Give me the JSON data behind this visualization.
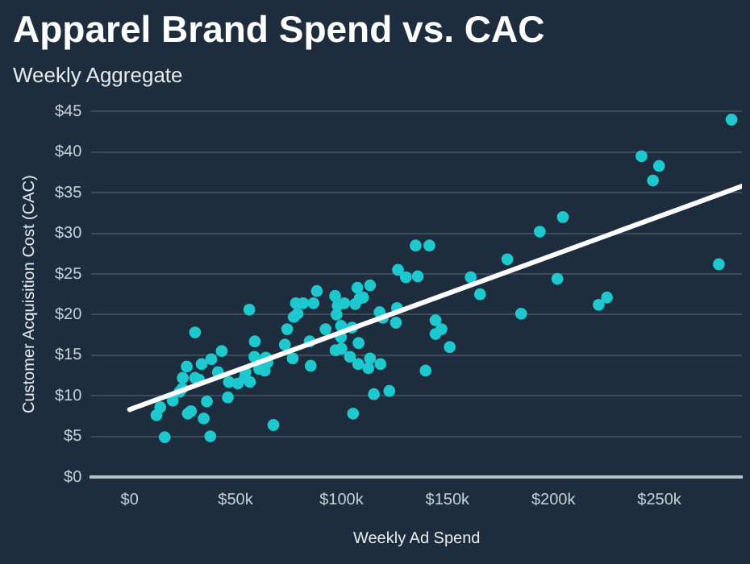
{
  "chart_data": {
    "type": "scatter",
    "title": "Apparel Brand Spend vs. CAC",
    "subtitle": "Weekly Aggregate",
    "xlabel": "Weekly Ad Spend",
    "ylabel": "Customer Acquisition Cost (CAC)",
    "xlim": [
      -18000,
      289000
    ],
    "xticks": [
      {
        "value": 0,
        "label": "$0"
      },
      {
        "value": 50000,
        "label": "$50k"
      },
      {
        "value": 100000,
        "label": "$100k"
      },
      {
        "value": 150000,
        "label": "$150k"
      },
      {
        "value": 200000,
        "label": "$200k"
      },
      {
        "value": 250000,
        "label": "$250k"
      }
    ],
    "ylim": [
      0,
      45
    ],
    "yticks": [
      {
        "value": 0,
        "label": "$0"
      },
      {
        "value": 5,
        "label": "$5"
      },
      {
        "value": 10,
        "label": "$10"
      },
      {
        "value": 15,
        "label": "$15"
      },
      {
        "value": 20,
        "label": "$20"
      },
      {
        "value": 25,
        "label": "$25"
      },
      {
        "value": 30,
        "label": "$30"
      },
      {
        "value": 35,
        "label": "$35"
      },
      {
        "value": 40,
        "label": "$40"
      },
      {
        "value": 45,
        "label": "$45"
      }
    ],
    "grid": "y",
    "legend": false,
    "marker": "circle",
    "series": [
      {
        "color": "#1ec8cf",
        "x": [
          12700,
          14500,
          16600,
          20400,
          23600,
          24900,
          25100,
          27000,
          27500,
          29000,
          30900,
          30900,
          32700,
          34000,
          35000,
          36500,
          38100,
          38600,
          41700,
          43500,
          46400,
          46900,
          51100,
          54400,
          54700,
          56500,
          56800,
          58900,
          59100,
          61200,
          63800,
          64300,
          65100,
          67900,
          73300,
          74400,
          77000,
          77500,
          78500,
          79300,
          81900,
          85000,
          85500,
          86800,
          88400,
          92500,
          97000,
          97700,
          98200,
          99800,
          99800,
          97200,
          100000,
          101300,
          104000,
          105000,
          105500,
          106500,
          107500,
          108100,
          108600,
          107900,
          110200,
          112700,
          113500,
          113500,
          115300,
          118000,
          118400,
          119500,
          122600,
          125700,
          126200,
          126700,
          130400,
          135000,
          136000,
          139700,
          141500,
          144400,
          144400,
          147200,
          151100,
          161000,
          165400,
          178300,
          184800,
          193600,
          201900,
          204500,
          221400,
          225300,
          241600,
          247000,
          249900,
          278100,
          284100
        ],
        "values": [
          7.6,
          8.6,
          4.9,
          9.4,
          10.5,
          10.9,
          12.2,
          13.6,
          7.8,
          8.1,
          17.8,
          12.2,
          12.0,
          13.9,
          7.2,
          9.3,
          5.0,
          14.5,
          12.9,
          15.5,
          9.8,
          11.7,
          11.5,
          12.2,
          12.9,
          20.6,
          11.7,
          14.8,
          16.7,
          13.3,
          13.1,
          14.7,
          14.1,
          6.4,
          16.3,
          18.2,
          14.6,
          19.7,
          21.4,
          20.1,
          21.4,
          16.7,
          13.7,
          21.4,
          22.9,
          18.2,
          22.3,
          20.0,
          21.1,
          18.6,
          17.2,
          15.6,
          15.8,
          21.4,
          14.8,
          18.4,
          7.8,
          21.3,
          23.3,
          16.5,
          22.0,
          13.9,
          22.1,
          13.4,
          14.6,
          23.6,
          10.2,
          20.3,
          13.9,
          19.6,
          10.6,
          19.0,
          20.8,
          25.5,
          24.6,
          28.5,
          24.7,
          13.1,
          28.5,
          19.3,
          17.6,
          18.2,
          16.0,
          24.6,
          22.5,
          26.8,
          20.1,
          30.2,
          24.4,
          32.0,
          21.2,
          22.1,
          39.5,
          36.5,
          38.3,
          26.2,
          44.0
        ]
      },
      {
        "type": "line",
        "color": "#ffffff",
        "marker": "none",
        "line_style": "solid",
        "x": [
          0,
          289000
        ],
        "values": [
          8.3,
          35.8
        ]
      }
    ]
  }
}
